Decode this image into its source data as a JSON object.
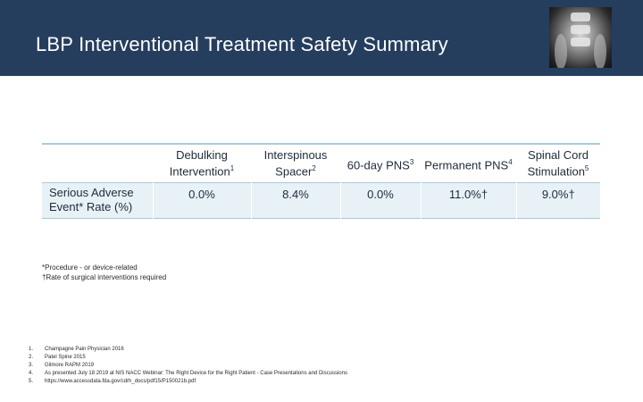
{
  "slide": {
    "title": "LBP Interventional Treatment Safety Summary"
  },
  "table": {
    "columns": [
      {
        "label": "Debulking Intervention",
        "sup": "1"
      },
      {
        "label": "Interspinous Spacer",
        "sup": "2"
      },
      {
        "label": "60-day PNS",
        "sup": "3"
      },
      {
        "label": "Permanent PNS",
        "sup": "4"
      },
      {
        "label": "Spinal Cord Stimulation",
        "sup": "5"
      }
    ],
    "row": {
      "label": "Serious Adverse Event* Rate (%)",
      "values": [
        "0.0%",
        "8.4%",
        "0.0%",
        "11.0%†",
        "9.0%†"
      ]
    }
  },
  "notes": {
    "asterisk": "*Procedure - or device-related",
    "dagger": "†Rate of surgical interventions required"
  },
  "references": [
    {
      "num": "1.",
      "text": "Champagne Pain Physician 2016"
    },
    {
      "num": "2.",
      "text": "Patel Spine 2015"
    },
    {
      "num": "3.",
      "text": "Gilmore RAPM 2019"
    },
    {
      "num": "4.",
      "text": "As presented July 18 2019 at NIS NACC Webinar: The Right Device for the Right Patient - Case Presentations and Discussions"
    },
    {
      "num": "5.",
      "text": "https://www.accessdata.fda.gov/cdrh_docs/pdf15/P150021b.pdf"
    }
  ]
}
